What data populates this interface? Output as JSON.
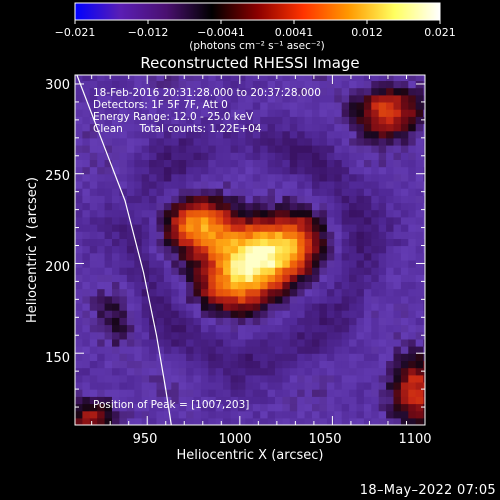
{
  "colorbar": {
    "tick_labels": [
      "−0.021",
      "−0.012",
      "−0.0041",
      "0.0041",
      "0.012",
      "0.021"
    ],
    "unit_label": "(photons cm⁻² s⁻¹ asec⁻²)",
    "range": [
      -0.021,
      0.021
    ],
    "colors": [
      "#0000ff",
      "#5a1eb4",
      "#4a1070",
      "#000000",
      "#8b0000",
      "#ff3300",
      "#ff9900",
      "#ffff60",
      "#ffffff"
    ]
  },
  "chart_data": {
    "type": "heatmap",
    "title": "Reconstructed RHESSI Image",
    "xlabel": "Heliocentric X (arcsec)",
    "ylabel": "Heliocentric Y (arcsec)",
    "xlim": [
      911,
      1100
    ],
    "ylim": [
      110,
      305
    ],
    "x_ticks": [
      "950",
      "1000",
      "1050",
      "1100"
    ],
    "y_ticks": [
      "150",
      "200",
      "250",
      "300"
    ],
    "annotations": [
      "18-Feb-2016 20:31:28.000 to 20:37:28.000",
      "Detectors: 1F 5F 7F, Att 0",
      "Energy Range: 12.0 - 25.0 keV",
      "Clean     Total counts: 1.22E+04"
    ],
    "peak_label": "Position of Peak = [1007,203]",
    "peak": [
      1007,
      203
    ],
    "limb_curve": [
      [
        912,
        305
      ],
      [
        925,
        270
      ],
      [
        938,
        235
      ],
      [
        948,
        195
      ],
      [
        955,
        160
      ],
      [
        960,
        130
      ],
      [
        963,
        110
      ]
    ]
  },
  "footer": {
    "date": "18–May–2022 07:05"
  }
}
